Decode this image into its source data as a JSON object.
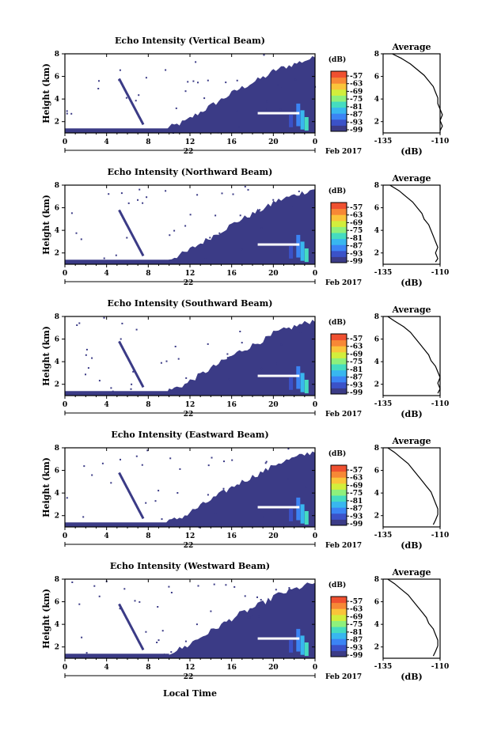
{
  "figure": {
    "xlabel": "Local Time",
    "date_day": "22",
    "date_month": "Feb 2017"
  },
  "colorbar": {
    "unit": "(dB)",
    "ticks": [
      "-57",
      "-63",
      "-69",
      "-75",
      "-81",
      "-87",
      "-93",
      "-99"
    ],
    "colors": [
      "#3b3b86",
      "#3b52c8",
      "#3b84f4",
      "#38b7ef",
      "#45dcc0",
      "#8ef07c",
      "#d2ee3c",
      "#fac43a",
      "#f78836",
      "#ef5030"
    ]
  },
  "chart_data": [
    {
      "type": "heatmap",
      "title": "Echo Intensity (Vertical Beam)",
      "xlabel": "Local Time",
      "ylabel": "Height (km)",
      "xlim": [
        0,
        24
      ],
      "ylim": [
        1,
        8
      ],
      "xticks": [
        "0",
        "4",
        "8",
        "12",
        "16",
        "20",
        "0"
      ],
      "yticks": [
        "2",
        "4",
        "6",
        "8"
      ],
      "zlabel": "(dB)",
      "zrange": [
        -99,
        -57
      ],
      "average_profile": {
        "title": "Average",
        "xlabel": "(dB)",
        "xlim": [
          -135,
          -110
        ],
        "xticks": [
          "-135",
          "-110"
        ],
        "yticks": [
          "2",
          "4",
          "6",
          "8"
        ],
        "points": [
          [
            -131,
            8.0
          ],
          [
            -127,
            7.6
          ],
          [
            -123,
            7.1
          ],
          [
            -120,
            6.6
          ],
          [
            -117,
            6.1
          ],
          [
            -115,
            5.6
          ],
          [
            -113,
            5.1
          ],
          [
            -112,
            4.6
          ],
          [
            -111,
            4.1
          ],
          [
            -111,
            3.6
          ],
          [
            -110,
            3.1
          ],
          [
            -109,
            2.6
          ],
          [
            -110,
            2.1
          ],
          [
            -109,
            1.6
          ],
          [
            -110,
            1.2
          ]
        ]
      }
    },
    {
      "type": "heatmap",
      "title": "Echo Intensity (Northward Beam)",
      "xlabel": "Local Time",
      "ylabel": "Height (km)",
      "xlim": [
        0,
        24
      ],
      "ylim": [
        1,
        8
      ],
      "xticks": [
        "0",
        "4",
        "8",
        "12",
        "16",
        "20",
        "0"
      ],
      "yticks": [
        "2",
        "4",
        "6",
        "8"
      ],
      "zlabel": "(dB)",
      "zrange": [
        -99,
        -57
      ],
      "average_profile": {
        "title": "Average",
        "xlabel": "(dB)",
        "xlim": [
          -135,
          -110
        ],
        "xticks": [
          "-135",
          "-110"
        ],
        "yticks": [
          "2",
          "4",
          "6",
          "8"
        ],
        "points": [
          [
            -132,
            8.0
          ],
          [
            -128,
            7.5
          ],
          [
            -125,
            7.0
          ],
          [
            -122,
            6.5
          ],
          [
            -120,
            6.0
          ],
          [
            -118,
            5.5
          ],
          [
            -117,
            5.0
          ],
          [
            -115,
            4.5
          ],
          [
            -114,
            4.0
          ],
          [
            -113,
            3.5
          ],
          [
            -112,
            3.0
          ],
          [
            -111,
            2.5
          ],
          [
            -112,
            2.0
          ],
          [
            -111,
            1.5
          ],
          [
            -112,
            1.2
          ]
        ]
      }
    },
    {
      "type": "heatmap",
      "title": "Echo Intensity (Southward Beam)",
      "xlabel": "Local Time",
      "ylabel": "Height (km)",
      "xlim": [
        0,
        24
      ],
      "ylim": [
        1,
        8
      ],
      "xticks": [
        "0",
        "4",
        "8",
        "12",
        "16",
        "20",
        "0"
      ],
      "yticks": [
        "2",
        "4",
        "6",
        "8"
      ],
      "zlabel": "(dB)",
      "zrange": [
        -99,
        -57
      ],
      "average_profile": {
        "title": "Average",
        "xlabel": "(dB)",
        "xlim": [
          -135,
          -110
        ],
        "xticks": [
          "-135",
          "-110"
        ],
        "yticks": [
          "2",
          "4",
          "6",
          "8"
        ],
        "points": [
          [
            -133,
            8.0
          ],
          [
            -130,
            7.6
          ],
          [
            -126,
            7.1
          ],
          [
            -123,
            6.6
          ],
          [
            -121,
            6.1
          ],
          [
            -119,
            5.6
          ],
          [
            -117,
            5.1
          ],
          [
            -115,
            4.6
          ],
          [
            -114,
            4.1
          ],
          [
            -112,
            3.6
          ],
          [
            -111,
            3.1
          ],
          [
            -110,
            2.6
          ],
          [
            -111,
            2.1
          ],
          [
            -110,
            1.6
          ],
          [
            -111,
            1.2
          ]
        ]
      }
    },
    {
      "type": "heatmap",
      "title": "Echo Intensity (Eastward Beam)",
      "xlabel": "Local Time",
      "ylabel": "Height (km)",
      "xlim": [
        0,
        24
      ],
      "ylim": [
        1,
        8
      ],
      "xticks": [
        "0",
        "4",
        "8",
        "12",
        "16",
        "20",
        "0"
      ],
      "yticks": [
        "2",
        "4",
        "6",
        "8"
      ],
      "zlabel": "(dB)",
      "zrange": [
        -99,
        -57
      ],
      "average_profile": {
        "title": "Average",
        "xlabel": "(dB)",
        "xlim": [
          -135,
          -110
        ],
        "xticks": [
          "-135",
          "-110"
        ],
        "yticks": [
          "2",
          "4",
          "6",
          "8"
        ],
        "points": [
          [
            -133,
            8.0
          ],
          [
            -130,
            7.6
          ],
          [
            -127,
            7.1
          ],
          [
            -124,
            6.6
          ],
          [
            -122,
            6.1
          ],
          [
            -120,
            5.6
          ],
          [
            -118,
            5.1
          ],
          [
            -116,
            4.6
          ],
          [
            -114,
            4.1
          ],
          [
            -113,
            3.6
          ],
          [
            -112,
            3.1
          ],
          [
            -111,
            2.6
          ],
          [
            -111,
            2.1
          ],
          [
            -112,
            1.6
          ],
          [
            -113,
            1.2
          ]
        ]
      }
    },
    {
      "type": "heatmap",
      "title": "Echo Intensity (Westward Beam)",
      "xlabel": "Local Time",
      "ylabel": "Height (km)",
      "xlim": [
        0,
        24
      ],
      "ylim": [
        1,
        8
      ],
      "xticks": [
        "0",
        "4",
        "8",
        "12",
        "16",
        "20",
        "0"
      ],
      "yticks": [
        "2",
        "4",
        "6",
        "8"
      ],
      "zlabel": "(dB)",
      "zrange": [
        -99,
        -57
      ],
      "average_profile": {
        "title": "Average",
        "xlabel": "(dB)",
        "xlim": [
          -135,
          -110
        ],
        "xticks": [
          "-135",
          "-110"
        ],
        "yticks": [
          "2",
          "4",
          "6",
          "8"
        ],
        "points": [
          [
            -133,
            8.0
          ],
          [
            -130,
            7.6
          ],
          [
            -127,
            7.1
          ],
          [
            -124,
            6.6
          ],
          [
            -122,
            6.1
          ],
          [
            -120,
            5.6
          ],
          [
            -118,
            5.1
          ],
          [
            -116,
            4.6
          ],
          [
            -115,
            4.1
          ],
          [
            -113,
            3.6
          ],
          [
            -112,
            3.1
          ],
          [
            -111,
            2.6
          ],
          [
            -111,
            2.1
          ],
          [
            -112,
            1.6
          ],
          [
            -113,
            1.2
          ]
        ]
      }
    }
  ]
}
